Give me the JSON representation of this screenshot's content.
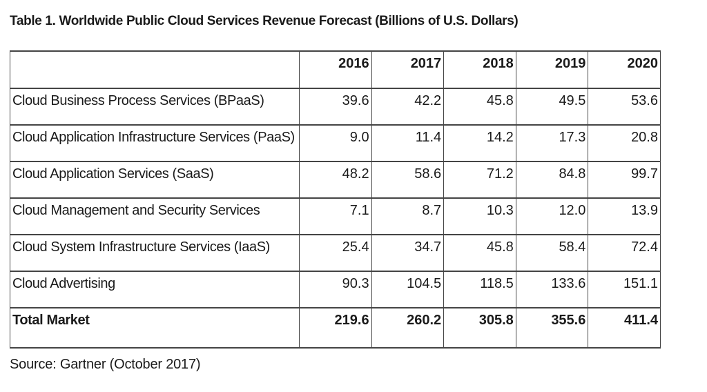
{
  "page": {
    "title": "Table 1. Worldwide Public Cloud Services Revenue Forecast (Billions of U.S. Dollars)",
    "source": "Source: Gartner (October 2017)"
  },
  "chart_data": {
    "type": "table",
    "title": "Table 1. Worldwide Public Cloud Services Revenue Forecast (Billions of U.S. Dollars)",
    "columns": [
      "",
      "2016",
      "2017",
      "2018",
      "2019",
      "2020"
    ],
    "rows": [
      {
        "label": "Cloud Business Process Services (BPaaS)",
        "values": [
          "39.6",
          "42.2",
          "45.8",
          "49.5",
          "53.6"
        ],
        "bold": false
      },
      {
        "label": "Cloud Application Infrastructure Services (PaaS)",
        "values": [
          "9.0",
          "11.4",
          "14.2",
          "17.3",
          "20.8"
        ],
        "bold": false
      },
      {
        "label": "Cloud Application Services (SaaS)",
        "values": [
          "48.2",
          "58.6",
          "71.2",
          "84.8",
          "99.7"
        ],
        "bold": false
      },
      {
        "label": "Cloud Management and Security Services",
        "values": [
          "7.1",
          "8.7",
          "10.3",
          "12.0",
          "13.9"
        ],
        "bold": false
      },
      {
        "label": "Cloud System Infrastructure Services (IaaS)",
        "values": [
          "25.4",
          "34.7",
          "45.8",
          "58.4",
          "72.4"
        ],
        "bold": false
      },
      {
        "label": "Cloud Advertising",
        "values": [
          "90.3",
          "104.5",
          "118.5",
          "133.6",
          "151.1"
        ],
        "bold": false
      },
      {
        "label": "Total Market",
        "values": [
          "219.6",
          "260.2",
          "305.8",
          "355.6",
          "411.4"
        ],
        "bold": true
      }
    ],
    "source": "Source: Gartner (October 2017)",
    "colors": {
      "text": "#1a1a1a",
      "border": "#444444",
      "background": "#ffffff"
    }
  }
}
